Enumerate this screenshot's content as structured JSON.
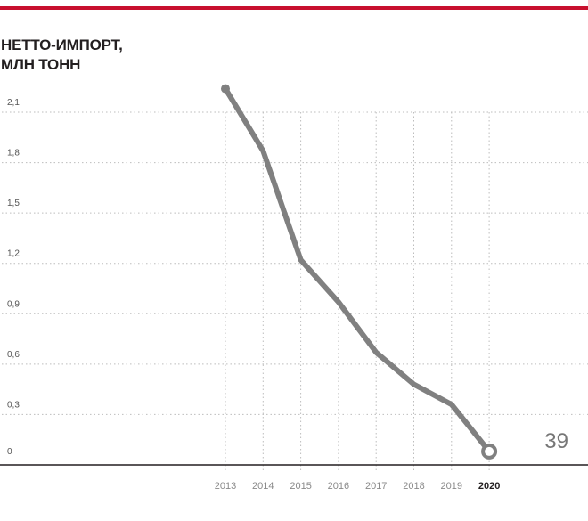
{
  "header": {
    "title_lines": [
      "НЕТТО-ИМПОРТ,",
      "МЛН ТОНН"
    ]
  },
  "page_number": "39",
  "colors": {
    "top_bar": "#c8102e",
    "line": "#808080",
    "grid": "#bdbdbd",
    "axis": "#231f20"
  },
  "chart_data": {
    "type": "line",
    "title": "НЕТТО-ИМПОРТ, МЛН ТОНН",
    "xlabel": "",
    "ylabel": "",
    "x": [
      "2013",
      "2014",
      "2015",
      "2016",
      "2017",
      "2018",
      "2019",
      "2020"
    ],
    "highlight_x": "2020",
    "y_ticks": [
      {
        "value": 0,
        "label": "0"
      },
      {
        "value": 0.3,
        "label": "0,3"
      },
      {
        "value": 0.6,
        "label": "0,6"
      },
      {
        "value": 0.9,
        "label": "0,9"
      },
      {
        "value": 1.2,
        "label": "1,2"
      },
      {
        "value": 1.5,
        "label": "1,5"
      },
      {
        "value": 1.8,
        "label": "1,8"
      },
      {
        "value": 2.1,
        "label": "2,1"
      }
    ],
    "ylim": [
      0,
      2.1
    ],
    "grid": true,
    "series": [
      {
        "values": [
          2.24,
          1.87,
          1.22,
          0.97,
          0.67,
          0.48,
          0.36,
          0.08
        ]
      }
    ]
  }
}
